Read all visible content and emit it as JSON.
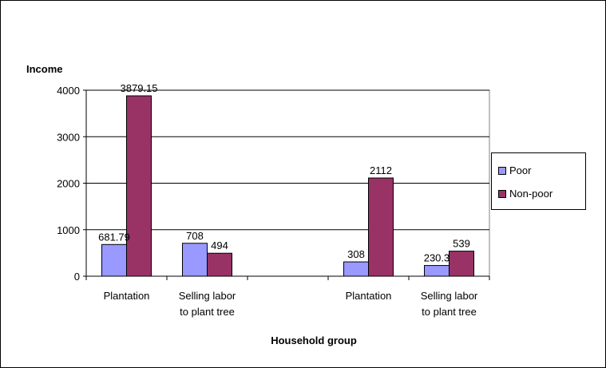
{
  "chart_data": {
    "type": "bar",
    "ylabel": "Income",
    "xlabel": "Household group",
    "ylim": [
      0,
      4000
    ],
    "yticks": [
      0,
      1000,
      2000,
      3000,
      4000
    ],
    "grid": true,
    "legend_position": "right",
    "categories": [
      [
        "Plantation"
      ],
      [
        "Selling labor",
        "to plant tree"
      ],
      [
        ""
      ],
      [
        "Plantation"
      ],
      [
        "Selling labor",
        "to plant tree"
      ]
    ],
    "series": [
      {
        "name": "Poor",
        "color": "#9999ff",
        "values": [
          681.79,
          708,
          null,
          308,
          230.3
        ],
        "labels": [
          "681.79",
          "708",
          "",
          "308",
          "230.3"
        ]
      },
      {
        "name": "Non-poor",
        "color": "#993366",
        "values": [
          3879.15,
          494,
          null,
          2112,
          539
        ],
        "labels": [
          "3879.15",
          "494",
          "",
          "2112",
          "539"
        ]
      }
    ]
  }
}
